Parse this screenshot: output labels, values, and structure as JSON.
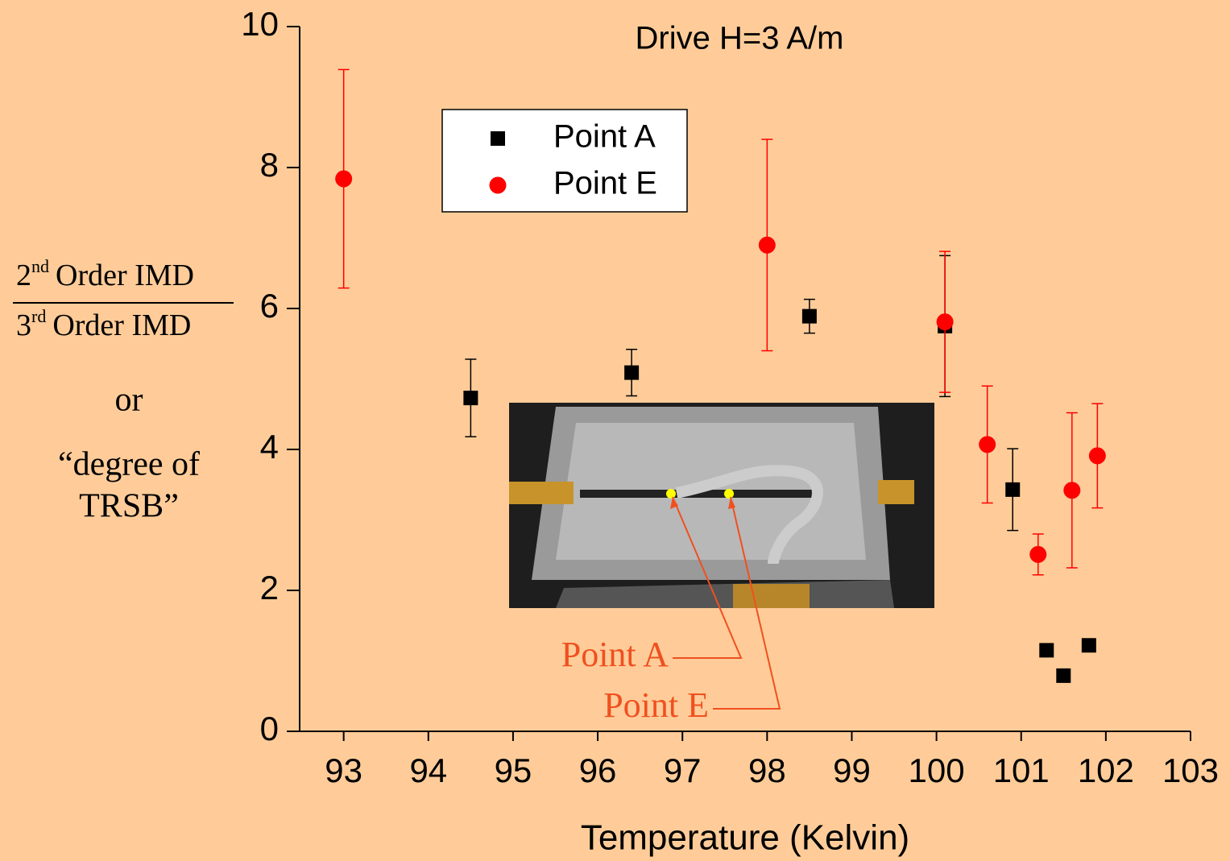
{
  "chart_data": {
    "type": "scatter",
    "title": "Drive H=3 A/m",
    "x_label": "Temperature (Kelvin)",
    "y_label": {
      "numerator_number": "2",
      "numerator_sup": "nd",
      "numerator_text": "Order IMD",
      "denominator_number": "3",
      "denominator_sup": "rd",
      "denominator_text": "Order IMD",
      "or": "or",
      "line1": "“degree of",
      "line2": "TRSB”"
    },
    "xlim": [
      92.48,
      103
    ],
    "xticks": [
      93,
      94,
      95,
      96,
      97,
      98,
      99,
      100,
      101,
      102,
      103
    ],
    "ylim": [
      0,
      10
    ],
    "yticks": [
      0,
      2,
      4,
      6,
      8,
      10
    ],
    "legend": "upper left",
    "series": [
      {
        "name": "Point A",
        "color": "#000000",
        "marker": "square",
        "x": [
          94.5,
          96.4,
          98.5,
          100.1,
          100.9,
          101.3,
          101.5,
          101.8
        ],
        "values": [
          4.73,
          5.09,
          5.89,
          5.75,
          3.43,
          1.15,
          0.79,
          1.22
        ],
        "errors": [
          0.55,
          0.33,
          0.24,
          1.0,
          0.58,
          null,
          null,
          null
        ]
      },
      {
        "name": "Point E",
        "color": "#ff0000",
        "marker": "circle",
        "x": [
          93,
          98,
          100.1,
          100.6,
          101.2,
          101.6,
          101.9
        ],
        "values": [
          7.84,
          6.9,
          5.81,
          4.07,
          2.51,
          3.42,
          3.91
        ],
        "errors": [
          1.55,
          1.5,
          1.0,
          0.83,
          0.29,
          1.1,
          0.74
        ]
      }
    ],
    "annotations": [
      "Point A",
      "Point E"
    ]
  }
}
